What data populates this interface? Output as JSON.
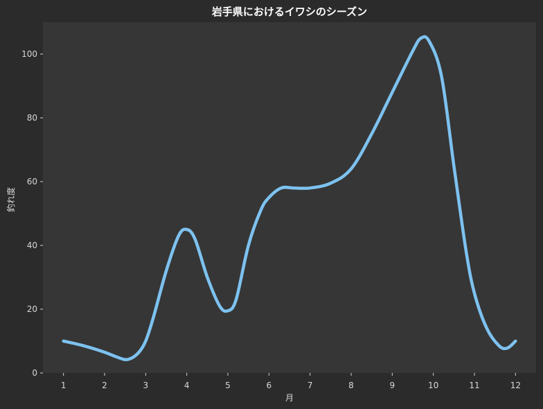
{
  "chart_data": {
    "type": "line",
    "title": "岩手県におけるイワシのシーズン",
    "xlabel": "月",
    "ylabel": "釣れ度",
    "x": [
      1,
      2,
      3,
      4,
      5,
      6,
      7,
      8,
      9,
      10,
      11,
      12
    ],
    "x_tick_labels": [
      "1",
      "2",
      "3",
      "4",
      "5",
      "6",
      "7",
      "8",
      "9",
      "10",
      "11",
      "12"
    ],
    "y_ticks": [
      0,
      20,
      40,
      60,
      80,
      100
    ],
    "y_tick_labels": [
      "0",
      "20",
      "40",
      "60",
      "80",
      "100"
    ],
    "xlim": [
      0.5,
      12.5
    ],
    "ylim": [
      0,
      110
    ],
    "grid": false,
    "smooth_curve": [
      [
        1.0,
        10
      ],
      [
        1.5,
        8.5
      ],
      [
        2.0,
        6.5
      ],
      [
        2.3,
        5
      ],
      [
        2.55,
        4.2
      ],
      [
        2.8,
        6
      ],
      [
        3.0,
        10
      ],
      [
        3.2,
        18
      ],
      [
        3.5,
        32
      ],
      [
        3.8,
        43
      ],
      [
        4.0,
        45
      ],
      [
        4.2,
        42
      ],
      [
        4.5,
        30
      ],
      [
        4.8,
        21
      ],
      [
        5.0,
        19.5
      ],
      [
        5.2,
        23
      ],
      [
        5.5,
        40
      ],
      [
        5.8,
        51
      ],
      [
        6.0,
        55
      ],
      [
        6.3,
        58
      ],
      [
        6.6,
        58
      ],
      [
        7.0,
        58
      ],
      [
        7.5,
        59.5
      ],
      [
        8.0,
        64
      ],
      [
        8.5,
        75
      ],
      [
        9.0,
        88
      ],
      [
        9.5,
        101
      ],
      [
        9.7,
        105
      ],
      [
        9.9,
        104
      ],
      [
        10.2,
        93
      ],
      [
        10.5,
        65
      ],
      [
        10.8,
        38
      ],
      [
        11.0,
        25
      ],
      [
        11.3,
        14
      ],
      [
        11.6,
        8.5
      ],
      [
        11.8,
        7.8
      ],
      [
        12.0,
        10
      ]
    ],
    "series": [
      {
        "values": [
          10,
          6.5,
          10,
          45,
          19.5,
          55,
          58,
          64,
          88,
          103,
          25,
          10
        ]
      }
    ],
    "colors": {
      "figure_bg": "#2b2b2b",
      "plot_bg": "#363636",
      "line": "#7dc2f0",
      "text": "#d8d8d8",
      "title": "#ffffff"
    }
  }
}
